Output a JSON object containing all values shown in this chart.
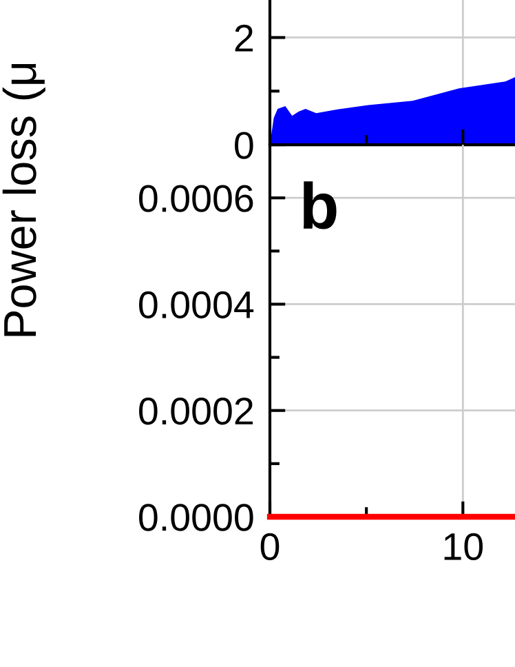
{
  "chart_data": [
    {
      "type": "area",
      "ylabel": "Power loss (μ",
      "tick_labels": "y",
      "x": [
        0,
        0.2,
        0.4,
        0.8,
        1.15,
        1.5,
        1.85,
        2.4,
        3.5,
        5.1,
        7.4,
        9.8,
        12.2,
        12.7
      ],
      "series": [
        {
          "color": "#0000ff",
          "values": [
            0,
            0.5,
            0.67,
            0.72,
            0.54,
            0.62,
            0.67,
            0.59,
            0.66,
            0.74,
            0.82,
            1.05,
            1.18,
            1.26
          ]
        }
      ],
      "xlim": [
        0,
        12.7
      ],
      "xticks": [
        0,
        {
          "value": 5,
          "label": null
        },
        10
      ],
      "ylim": [
        0,
        2.7
      ],
      "yticks": [
        0,
        {
          "value": 1,
          "label": null
        },
        2
      ],
      "grid": true
    },
    {
      "type": "line",
      "annotations": [
        "b"
      ],
      "x": [
        0,
        12.7
      ],
      "series": [
        {
          "color": "#ff0000",
          "values": [
            0,
            0
          ]
        }
      ],
      "xlim": [
        0,
        12.7
      ],
      "xticks": [
        0,
        {
          "value": 5,
          "label": null
        },
        10
      ],
      "ylim": [
        0,
        0.0007
      ],
      "yticks": [
        "0.0000",
        {
          "value": 0.0001,
          "label": null
        },
        {
          "value": 0.0002,
          "label": "0.0002"
        },
        {
          "value": 0.0003,
          "label": null
        },
        {
          "value": 0.0004,
          "label": "0.0004"
        },
        {
          "value": 0.0005,
          "label": null
        },
        {
          "value": 0.0006,
          "label": "0.0006"
        }
      ],
      "grid": true
    }
  ]
}
